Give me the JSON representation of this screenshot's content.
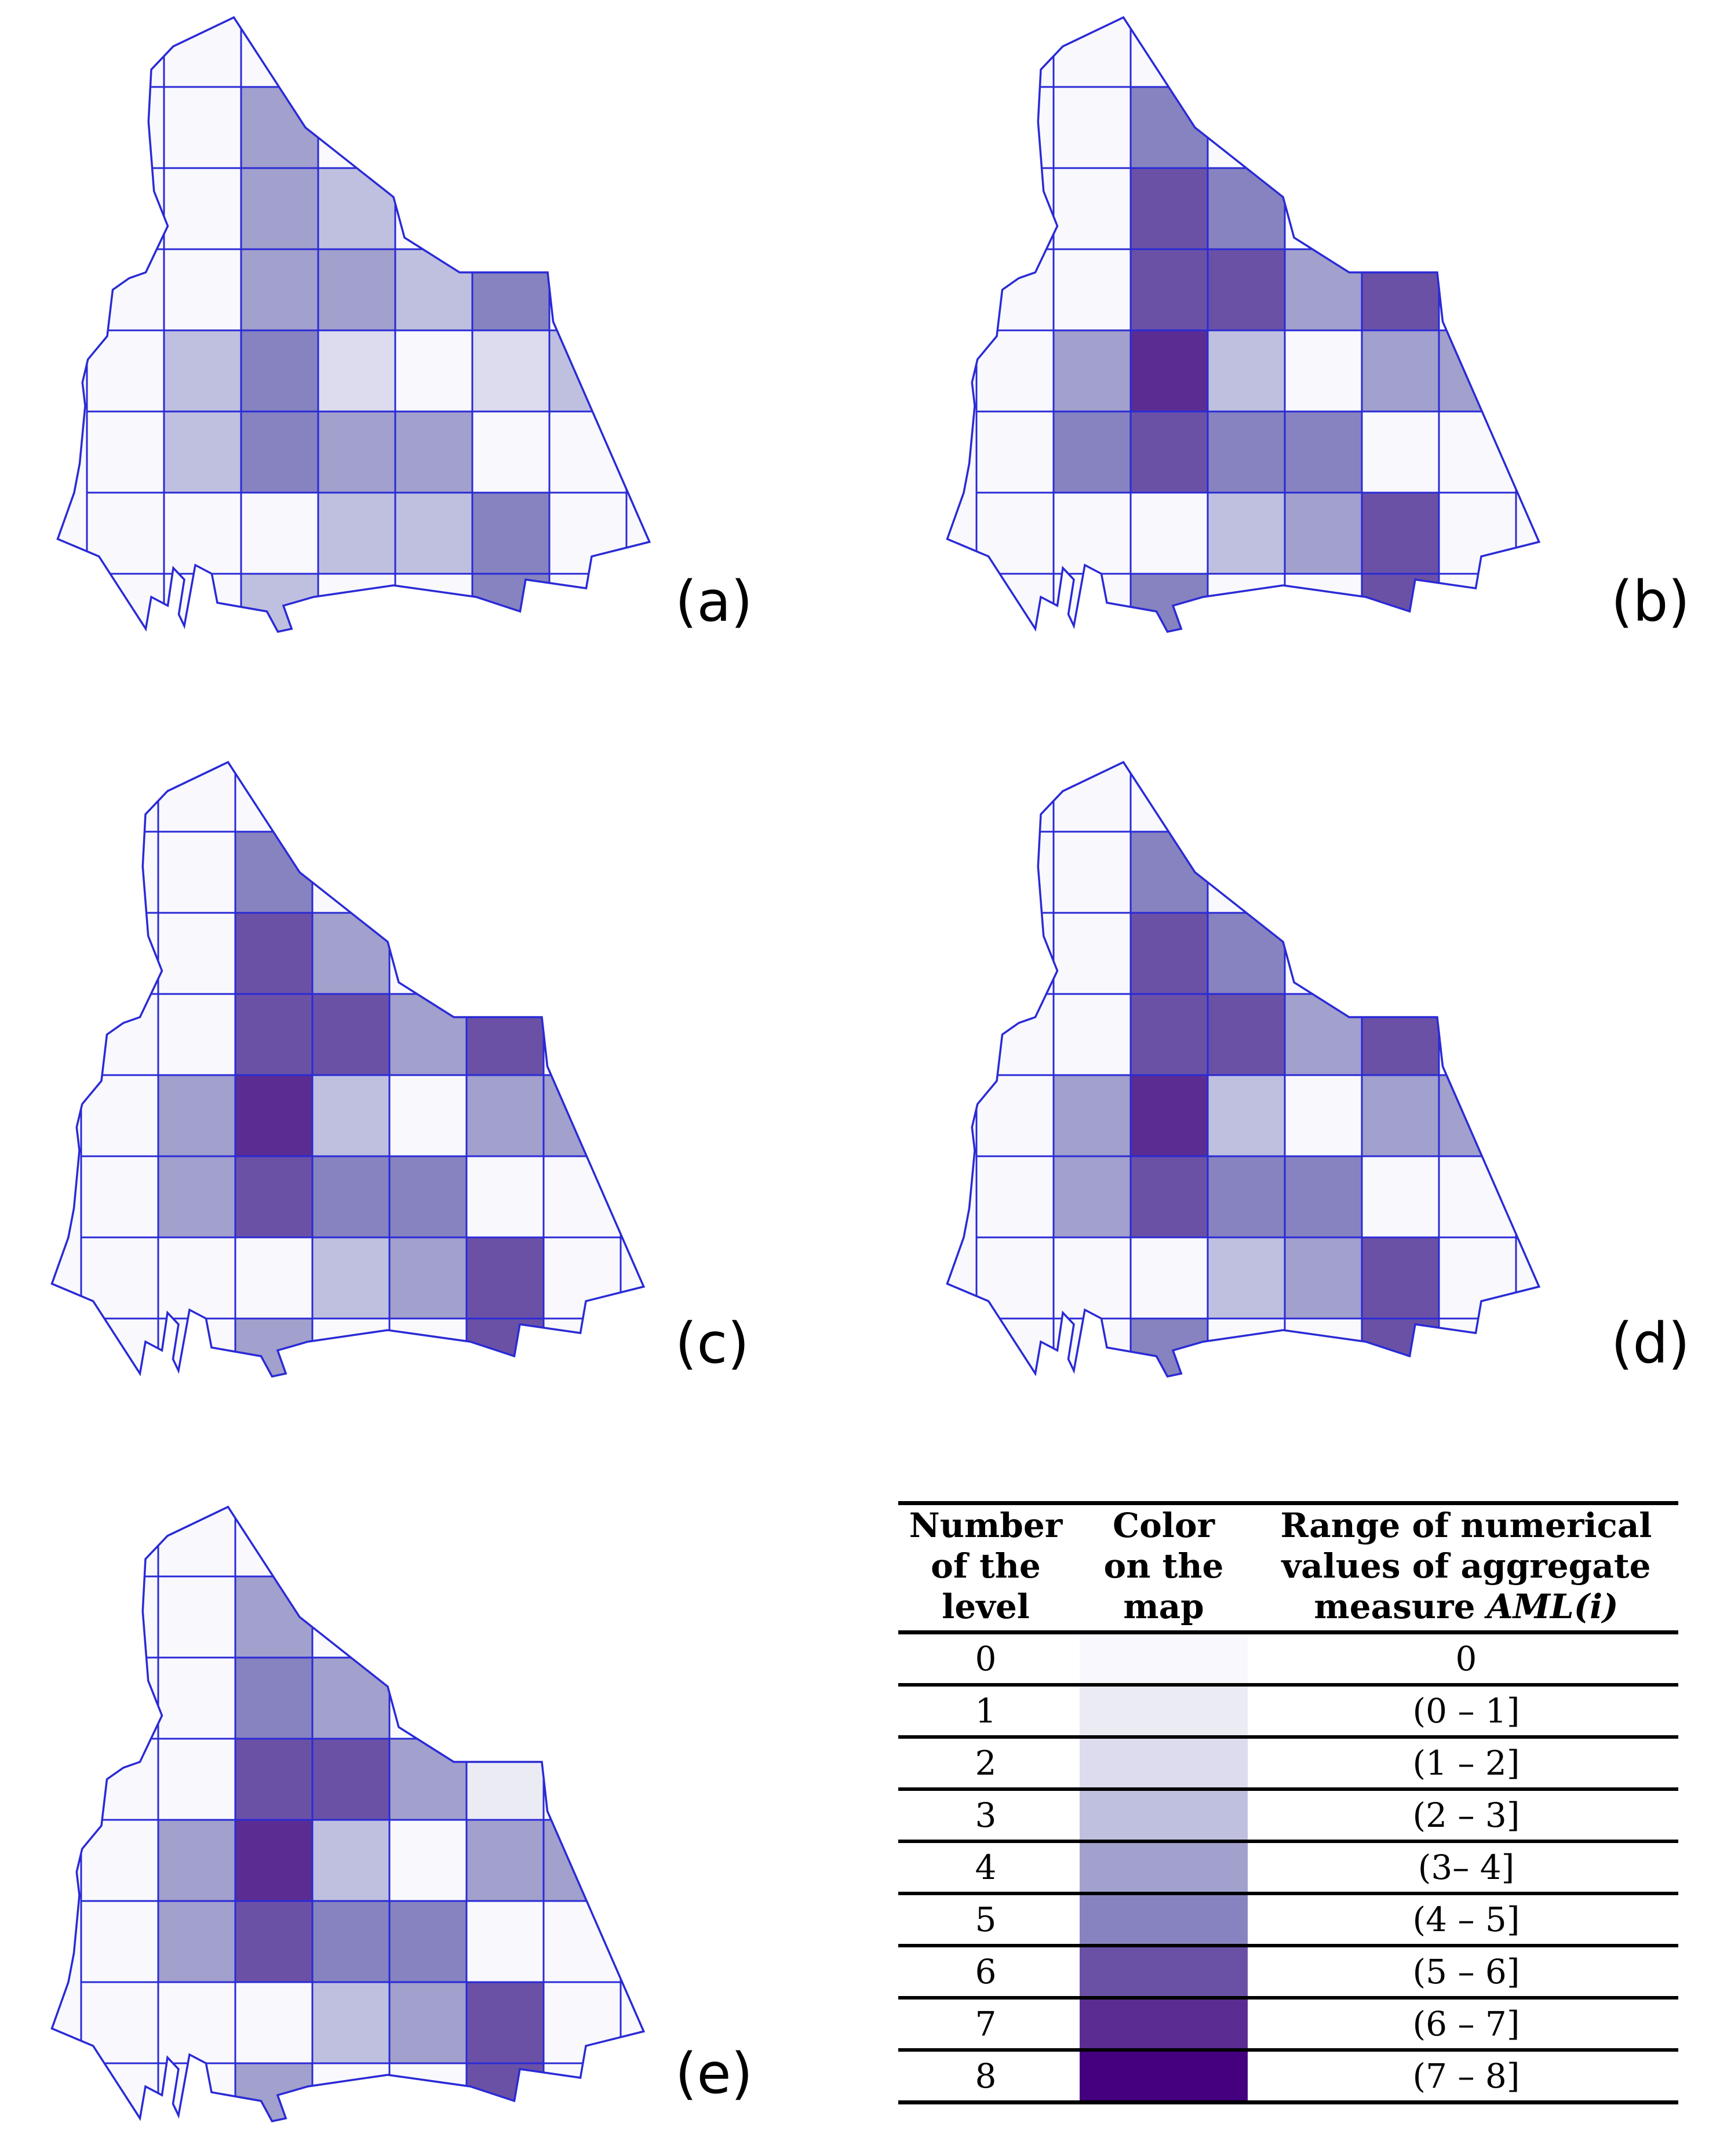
{
  "panels": [
    {
      "label": "(a)",
      "grid": [
        [
          0,
          0,
          0,
          0,
          0,
          0,
          0,
          0
        ],
        [
          0,
          0,
          4,
          0,
          0,
          0,
          0,
          0
        ],
        [
          0,
          0,
          4,
          3,
          0,
          0,
          0,
          0
        ],
        [
          0,
          0,
          4,
          4,
          3,
          5,
          0,
          0
        ],
        [
          0,
          3,
          5,
          2,
          0,
          2,
          3,
          0
        ],
        [
          0,
          3,
          5,
          4,
          4,
          0,
          0,
          0
        ],
        [
          0,
          0,
          0,
          3,
          3,
          5,
          0,
          0
        ],
        [
          0,
          0,
          3,
          0,
          0,
          5,
          0,
          0
        ]
      ]
    },
    {
      "label": "(b)",
      "grid": [
        [
          0,
          0,
          0,
          0,
          0,
          0,
          0,
          0
        ],
        [
          0,
          0,
          5,
          0,
          0,
          0,
          0,
          0
        ],
        [
          0,
          0,
          6,
          5,
          0,
          0,
          0,
          0
        ],
        [
          0,
          0,
          6,
          6,
          4,
          6,
          0,
          0
        ],
        [
          0,
          4,
          7,
          3,
          0,
          4,
          4,
          0
        ],
        [
          0,
          5,
          6,
          5,
          5,
          0,
          0,
          0
        ],
        [
          0,
          0,
          0,
          3,
          4,
          6,
          0,
          0
        ],
        [
          0,
          0,
          5,
          0,
          0,
          6,
          0,
          0
        ]
      ]
    },
    {
      "label": "(c)",
      "grid": [
        [
          0,
          0,
          0,
          0,
          0,
          0,
          0,
          0
        ],
        [
          0,
          0,
          5,
          0,
          0,
          0,
          0,
          0
        ],
        [
          0,
          0,
          6,
          4,
          0,
          0,
          0,
          0
        ],
        [
          0,
          0,
          6,
          6,
          4,
          6,
          0,
          0
        ],
        [
          0,
          4,
          7,
          3,
          0,
          4,
          4,
          0
        ],
        [
          0,
          4,
          6,
          5,
          5,
          0,
          0,
          0
        ],
        [
          0,
          0,
          0,
          3,
          4,
          6,
          0,
          0
        ],
        [
          0,
          0,
          4,
          0,
          0,
          6,
          0,
          0
        ]
      ]
    },
    {
      "label": "(d)",
      "grid": [
        [
          0,
          0,
          0,
          0,
          0,
          0,
          0,
          0
        ],
        [
          0,
          0,
          5,
          0,
          0,
          0,
          0,
          0
        ],
        [
          0,
          0,
          6,
          5,
          0,
          0,
          0,
          0
        ],
        [
          0,
          0,
          6,
          6,
          4,
          6,
          0,
          0
        ],
        [
          0,
          4,
          7,
          3,
          0,
          4,
          4,
          0
        ],
        [
          0,
          4,
          6,
          5,
          5,
          0,
          0,
          0
        ],
        [
          0,
          0,
          0,
          3,
          4,
          6,
          0,
          0
        ],
        [
          0,
          0,
          5,
          0,
          0,
          6,
          0,
          0
        ]
      ]
    },
    {
      "label": "(e)",
      "grid": [
        [
          0,
          0,
          0,
          0,
          0,
          0,
          0,
          0
        ],
        [
          0,
          0,
          4,
          0,
          0,
          0,
          0,
          0
        ],
        [
          0,
          0,
          5,
          4,
          0,
          0,
          0,
          0
        ],
        [
          0,
          0,
          6,
          6,
          4,
          1,
          0,
          0
        ],
        [
          0,
          4,
          7,
          3,
          0,
          4,
          4,
          0
        ],
        [
          0,
          4,
          6,
          5,
          5,
          0,
          0,
          0
        ],
        [
          0,
          0,
          0,
          3,
          4,
          6,
          0,
          0
        ],
        [
          0,
          0,
          4,
          0,
          0,
          6,
          0,
          0
        ]
      ]
    }
  ],
  "level_colors": [
    "#f9f9fd",
    "#ebebf4",
    "#dcdcee",
    "#bfc0df",
    "#a2a0cc",
    "#8683c0",
    "#6b51a6",
    "#5b2d92",
    "#44007f"
  ],
  "outline_color": "#2a2ad6",
  "legend": {
    "headers": [
      "Number\nof the\nlevel",
      "Color\non the\nmap",
      "Range of numerical\nvalues of aggregate\nmeasure "
    ],
    "header_measure_italic": "AML(i)",
    "rows": [
      {
        "level": "0",
        "range": "0"
      },
      {
        "level": "1",
        "range": "(0 – 1]"
      },
      {
        "level": "2",
        "range": "(1 – 2]"
      },
      {
        "level": "3",
        "range": "(2 – 3]"
      },
      {
        "level": "4",
        "range": "(3– 4]"
      },
      {
        "level": "5",
        "range": "(4 – 5]"
      },
      {
        "level": "6",
        "range": "(5 – 6]"
      },
      {
        "level": "7",
        "range": "(6 – 7]"
      },
      {
        "level": "8",
        "range": "(7 – 8]"
      }
    ]
  }
}
